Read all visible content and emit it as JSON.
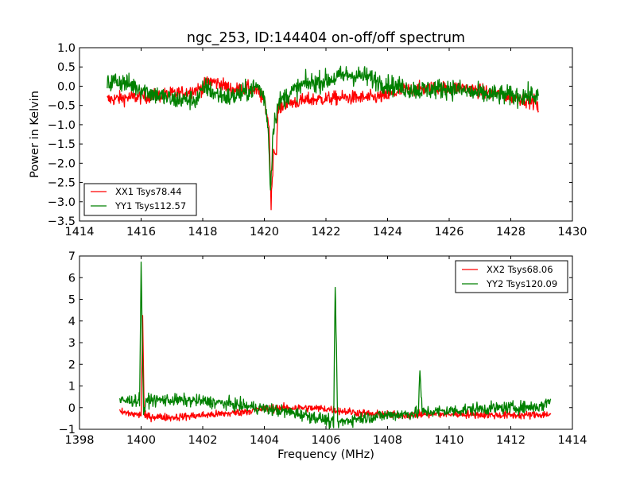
{
  "title": "ngc_253, ID:144404 on-off/off spectrum",
  "colors": {
    "xx": "#ff0000",
    "yy": "#008000",
    "axis": "#000000"
  },
  "chart_data": [
    {
      "type": "line",
      "title": "ngc_253, ID:144404 on-off/off spectrum",
      "xlabel": "",
      "ylabel": "Power in Kelvin",
      "xlim": [
        1414,
        1430
      ],
      "ylim": [
        -3.5,
        1.0
      ],
      "xticks": [
        "1414",
        "1416",
        "1418",
        "1420",
        "1422",
        "1424",
        "1426",
        "1428",
        "1430"
      ],
      "yticks": [
        "1.0",
        "0.5",
        "0.0",
        "−0.5",
        "−1.0",
        "−1.5",
        "−2.0",
        "−2.5",
        "−3.0",
        "−3.5"
      ],
      "grid": false,
      "legend_position": "lower-left",
      "series": [
        {
          "name": "XX1 Tsys78.44",
          "color": "#ff0000",
          "noise": 0.09,
          "points": [
            [
              1414.9,
              -0.35
            ],
            [
              1415.5,
              -0.3
            ],
            [
              1416.5,
              -0.25
            ],
            [
              1417.5,
              -0.15
            ],
            [
              1418.0,
              -0.05
            ],
            [
              1418.2,
              0.15
            ],
            [
              1418.6,
              0.05
            ],
            [
              1419.0,
              -0.1
            ],
            [
              1419.5,
              -0.05
            ],
            [
              1419.8,
              -0.15
            ],
            [
              1420.0,
              -0.4
            ],
            [
              1420.15,
              -1.0
            ],
            [
              1420.22,
              -3.1
            ],
            [
              1420.3,
              -1.6
            ],
            [
              1420.38,
              -1.8
            ],
            [
              1420.45,
              -0.6
            ],
            [
              1420.7,
              -0.45
            ],
            [
              1421.5,
              -0.35
            ],
            [
              1422.5,
              -0.3
            ],
            [
              1423.5,
              -0.3
            ],
            [
              1424.0,
              -0.25
            ],
            [
              1424.5,
              -0.1
            ],
            [
              1425.5,
              -0.05
            ],
            [
              1426.5,
              -0.05
            ],
            [
              1427.5,
              -0.2
            ],
            [
              1428.5,
              -0.35
            ],
            [
              1428.8,
              -0.4
            ],
            [
              1428.9,
              -0.65
            ]
          ]
        },
        {
          "name": "YY1 Tsys112.57",
          "color": "#008000",
          "noise": 0.13,
          "points": [
            [
              1414.9,
              0.05
            ],
            [
              1415.2,
              0.15
            ],
            [
              1415.8,
              0.0
            ],
            [
              1416.4,
              -0.2
            ],
            [
              1417.0,
              -0.35
            ],
            [
              1417.8,
              -0.35
            ],
            [
              1418.1,
              0.0
            ],
            [
              1418.4,
              -0.2
            ],
            [
              1418.9,
              -0.3
            ],
            [
              1419.4,
              -0.15
            ],
            [
              1419.8,
              0.0
            ],
            [
              1420.0,
              -0.3
            ],
            [
              1420.12,
              -1.0
            ],
            [
              1420.2,
              -2.7
            ],
            [
              1420.28,
              -1.2
            ],
            [
              1420.35,
              -0.8
            ],
            [
              1420.5,
              -0.4
            ],
            [
              1420.8,
              -0.2
            ],
            [
              1421.3,
              0.05
            ],
            [
              1422.0,
              0.15
            ],
            [
              1422.7,
              0.3
            ],
            [
              1423.3,
              0.25
            ],
            [
              1423.8,
              0.1
            ],
            [
              1424.2,
              0.0
            ],
            [
              1425.0,
              -0.1
            ],
            [
              1426.0,
              -0.05
            ],
            [
              1427.0,
              -0.2
            ],
            [
              1428.0,
              -0.25
            ],
            [
              1428.9,
              -0.25
            ]
          ]
        }
      ]
    },
    {
      "type": "line",
      "title": "",
      "xlabel": "Frequency (MHz)",
      "ylabel": "",
      "xlim": [
        1398,
        1414
      ],
      "ylim": [
        -1,
        7
      ],
      "xticks": [
        "1398",
        "1400",
        "1402",
        "1404",
        "1406",
        "1408",
        "1410",
        "1412",
        "1414"
      ],
      "yticks": [
        "7",
        "6",
        "5",
        "4",
        "3",
        "2",
        "1",
        "0",
        "−1"
      ],
      "grid": false,
      "legend_position": "upper-right",
      "series": [
        {
          "name": "XX2 Tsys68.06",
          "color": "#ff0000",
          "noise": 0.09,
          "points": [
            [
              1399.3,
              -0.2
            ],
            [
              1400.0,
              -0.35
            ],
            [
              1400.05,
              4.3
            ],
            [
              1400.1,
              -0.4
            ],
            [
              1401.0,
              -0.45
            ],
            [
              1402.0,
              -0.35
            ],
            [
              1403.0,
              -0.25
            ],
            [
              1404.0,
              -0.05
            ],
            [
              1405.0,
              0.0
            ],
            [
              1406.0,
              -0.05
            ],
            [
              1406.5,
              -0.15
            ],
            [
              1407.5,
              -0.3
            ],
            [
              1408.5,
              -0.35
            ],
            [
              1409.5,
              -0.3
            ],
            [
              1410.5,
              -0.3
            ],
            [
              1411.5,
              -0.35
            ],
            [
              1412.5,
              -0.35
            ],
            [
              1413.3,
              -0.3
            ]
          ]
        },
        {
          "name": "YY2 Tsys120.09",
          "color": "#008000",
          "noise": 0.14,
          "points": [
            [
              1399.3,
              0.3
            ],
            [
              1399.95,
              0.35
            ],
            [
              1400.0,
              6.5
            ],
            [
              1400.08,
              -0.2
            ],
            [
              1400.2,
              0.35
            ],
            [
              1401.0,
              0.35
            ],
            [
              1402.0,
              0.3
            ],
            [
              1403.0,
              0.15
            ],
            [
              1404.0,
              -0.05
            ],
            [
              1405.0,
              -0.25
            ],
            [
              1406.0,
              -0.55
            ],
            [
              1406.25,
              -0.8
            ],
            [
              1406.3,
              5.8
            ],
            [
              1406.38,
              -0.7
            ],
            [
              1407.0,
              -0.5
            ],
            [
              1408.0,
              -0.35
            ],
            [
              1409.0,
              -0.25
            ],
            [
              1409.05,
              1.8
            ],
            [
              1409.12,
              -0.2
            ],
            [
              1410.0,
              -0.15
            ],
            [
              1411.0,
              -0.05
            ],
            [
              1412.0,
              0.0
            ],
            [
              1413.0,
              0.05
            ],
            [
              1413.3,
              0.4
            ]
          ]
        }
      ]
    }
  ]
}
